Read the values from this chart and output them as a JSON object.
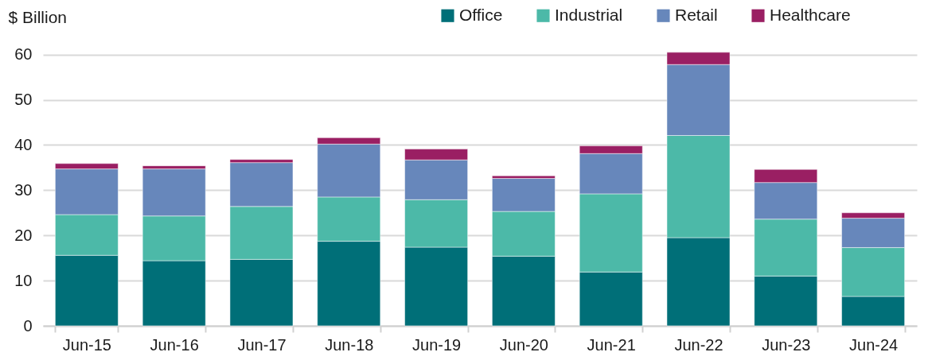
{
  "chart_data": {
    "type": "bar",
    "stacked": true,
    "ylabel": "$ Billion",
    "categories": [
      "Jun-15",
      "Jun-16",
      "Jun-17",
      "Jun-18",
      "Jun-19",
      "Jun-20",
      "Jun-21",
      "Jun-22",
      "Jun-23",
      "Jun-24"
    ],
    "series": [
      {
        "name": "Office",
        "color": "#006f78",
        "values": [
          15.6,
          14.4,
          14.7,
          18.7,
          17.4,
          15.4,
          11.9,
          19.5,
          11.0,
          6.5
        ]
      },
      {
        "name": "Industrial",
        "color": "#4cb9a8",
        "values": [
          9.0,
          9.9,
          11.7,
          9.8,
          10.5,
          9.9,
          17.3,
          22.6,
          12.6,
          10.8
        ]
      },
      {
        "name": "Retail",
        "color": "#6787bb",
        "values": [
          10.1,
          10.4,
          9.7,
          11.7,
          8.8,
          7.3,
          8.9,
          15.7,
          8.1,
          6.5
        ]
      },
      {
        "name": "Healthcare",
        "color": "#9a1f63",
        "values": [
          1.2,
          0.7,
          0.7,
          1.4,
          2.4,
          0.6,
          1.7,
          2.7,
          2.9,
          1.2
        ]
      }
    ],
    "ylim": [
      0,
      61
    ],
    "yticks": [
      0,
      10,
      20,
      30,
      40,
      50,
      60
    ],
    "grid": "y",
    "legend": "top right"
  }
}
